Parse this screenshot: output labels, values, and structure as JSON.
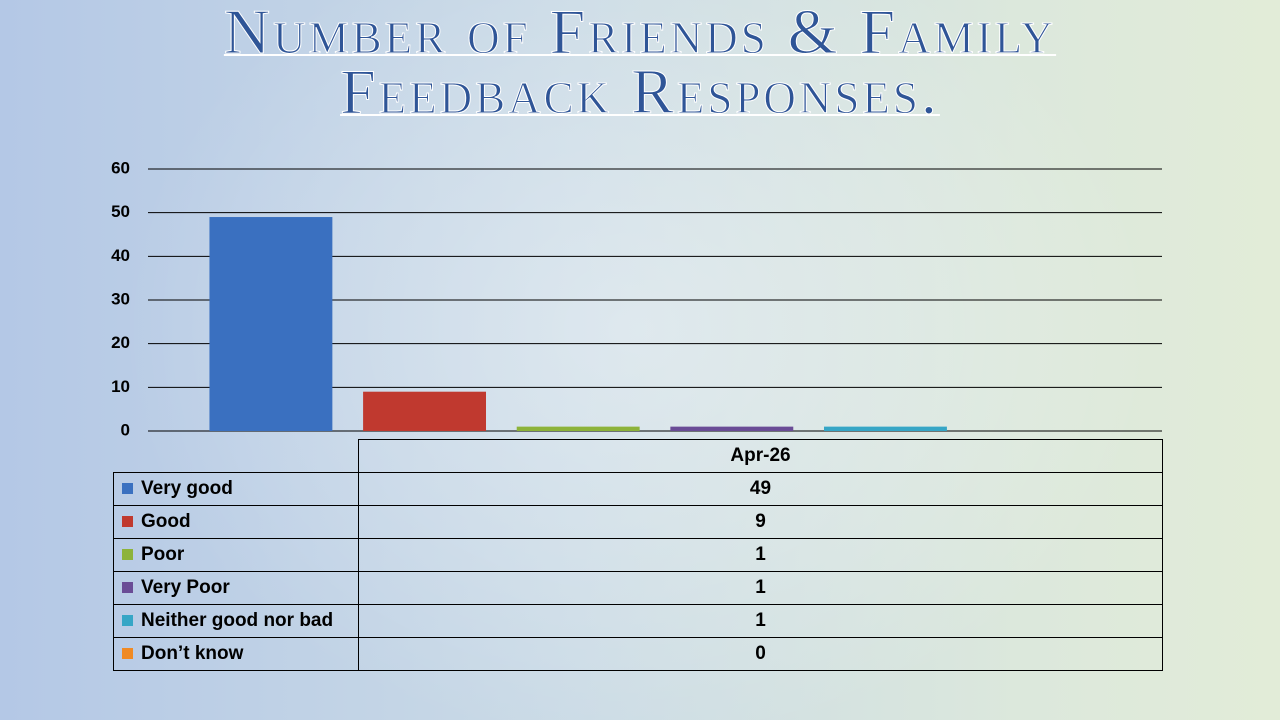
{
  "chart_data": {
    "type": "bar",
    "title": "Number of Friends & Family Feedback Responses.",
    "categories": [
      "Apr-26"
    ],
    "series": [
      {
        "name": "Very good",
        "color": "#3a70c0",
        "values": [
          49
        ]
      },
      {
        "name": "Good",
        "color": "#c0392f",
        "values": [
          9
        ]
      },
      {
        "name": "Poor",
        "color": "#8db33a",
        "values": [
          1
        ]
      },
      {
        "name": "Very Poor",
        "color": "#6a4c96",
        "values": [
          1
        ]
      },
      {
        "name": "Neither good nor bad",
        "color": "#36a6c6",
        "values": [
          1
        ]
      },
      {
        "name": "Don’t know",
        "color": "#f08a24",
        "values": [
          0
        ]
      }
    ],
    "ylim": [
      0,
      60
    ],
    "yticks": [
      0,
      10,
      20,
      30,
      40,
      50,
      60
    ],
    "grid": true
  }
}
